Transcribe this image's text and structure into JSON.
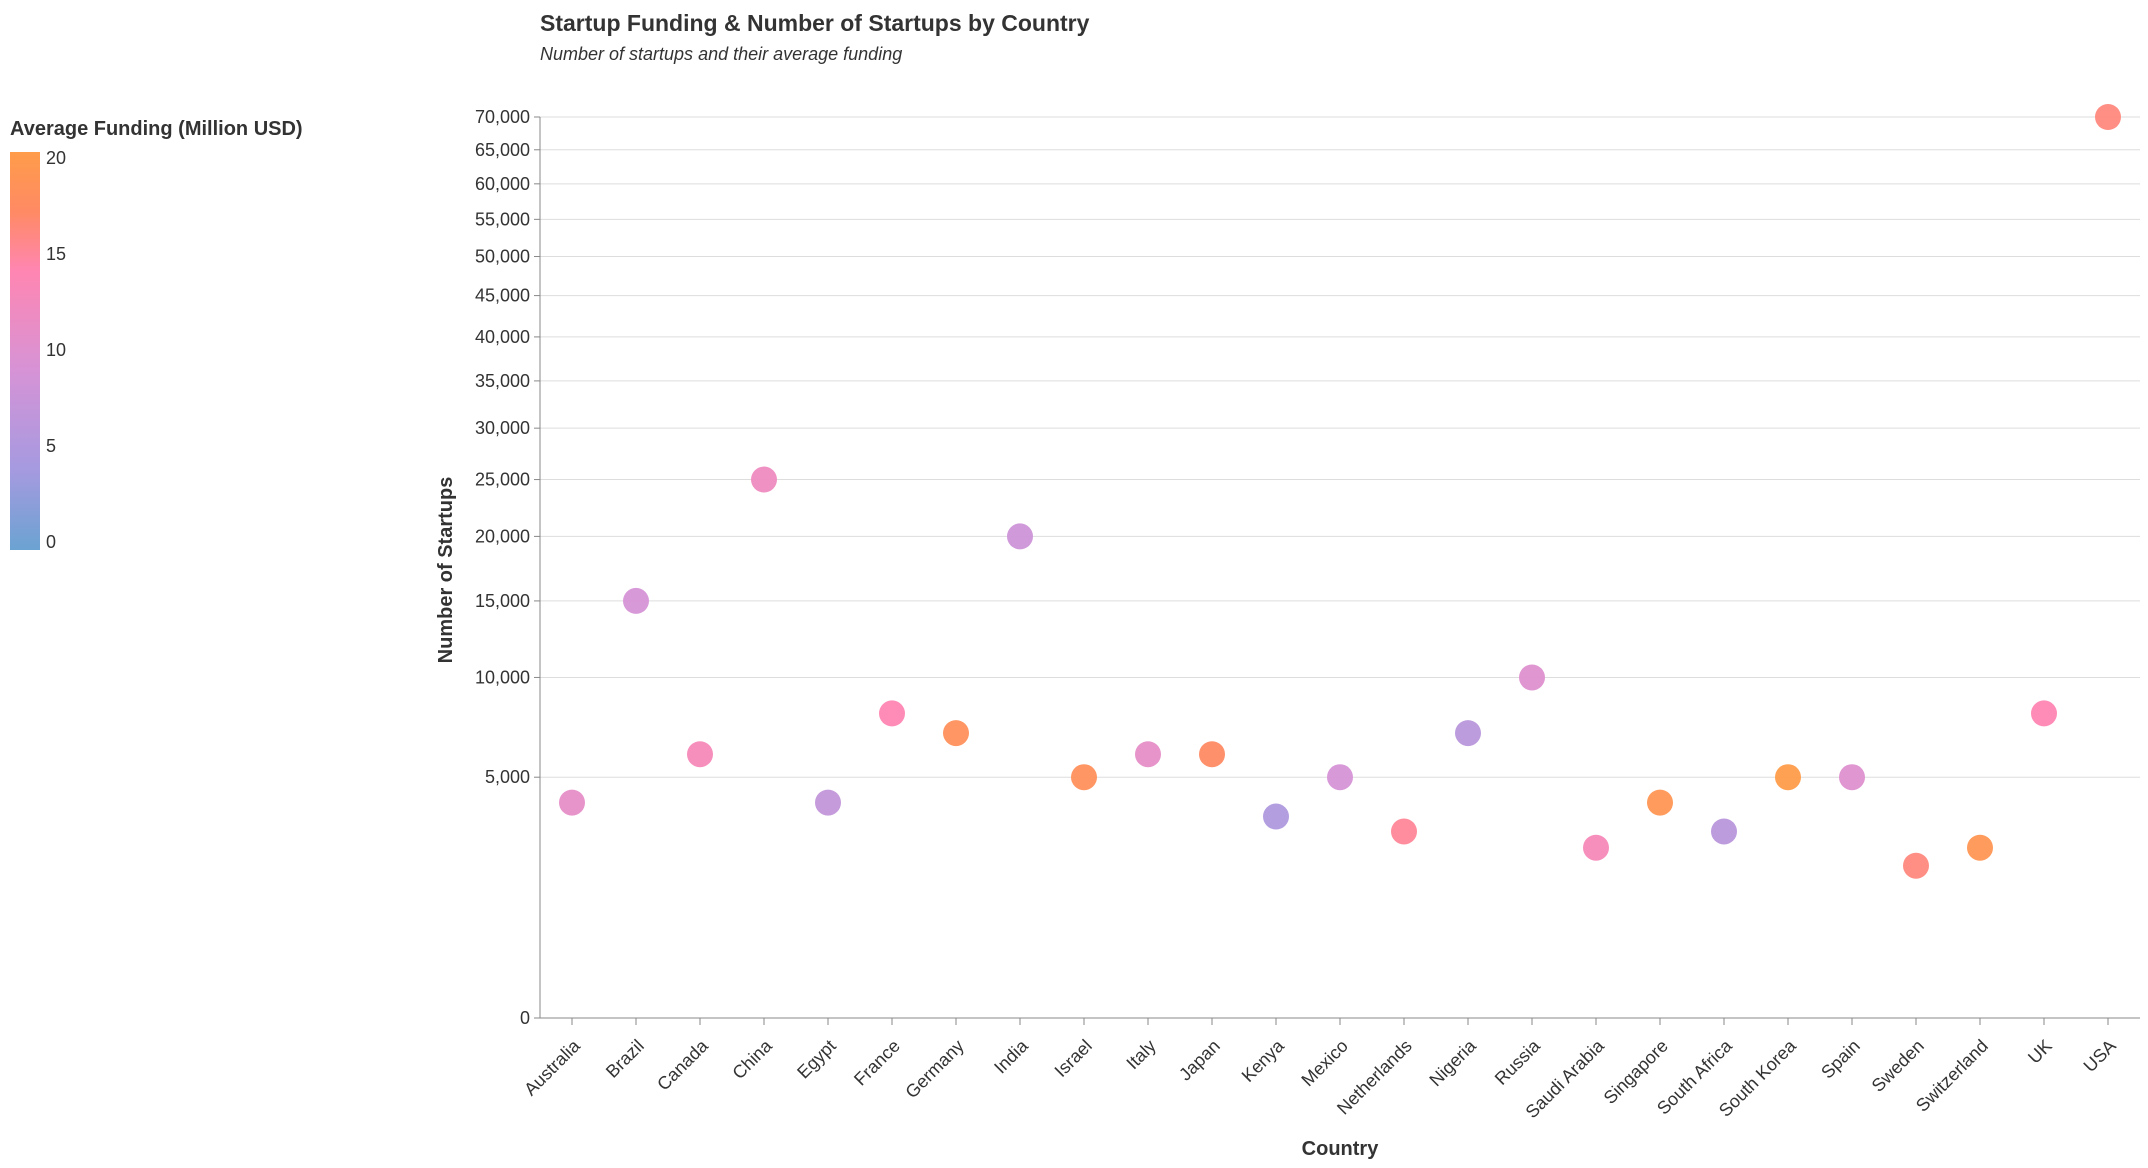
{
  "chart_data": {
    "type": "scatter",
    "title": "Startup Funding & Number of Startups by Country",
    "subtitle": "Number of startups and their average funding",
    "xlabel": "Country",
    "ylabel": "Number of Startups",
    "y_scale": "sqrt",
    "ylim": [
      0,
      70000
    ],
    "y_ticks": [
      0,
      5000,
      10000,
      15000,
      20000,
      25000,
      30000,
      35000,
      40000,
      45000,
      50000,
      55000,
      60000,
      65000,
      70000
    ],
    "y_tick_labels": [
      "0",
      "5,000",
      "10,000",
      "15,000",
      "20,000",
      "25,000",
      "30,000",
      "35,000",
      "40,000",
      "45,000",
      "50,000",
      "55,000",
      "60,000",
      "65,000",
      "70,000"
    ],
    "grid": true,
    "categories": [
      "Australia",
      "Brazil",
      "Canada",
      "China",
      "Egypt",
      "France",
      "Germany",
      "India",
      "Israel",
      "Italy",
      "Japan",
      "Kenya",
      "Mexico",
      "Netherlands",
      "Nigeria",
      "Russia",
      "Saudi Arabia",
      "Singapore",
      "South Africa",
      "South Korea",
      "Spain",
      "Sweden",
      "Switzerland",
      "UK",
      "USA"
    ],
    "startups": [
      4000,
      15000,
      6000,
      25000,
      4000,
      8000,
      7000,
      20000,
      5000,
      6000,
      6000,
      3500,
      5000,
      3000,
      7000,
      10000,
      2500,
      4000,
      3000,
      5000,
      5000,
      2000,
      2500,
      8000,
      70000
    ],
    "avg_funding_musd": [
      11,
      9,
      13,
      12,
      7,
      14,
      18,
      8,
      18,
      11,
      17,
      5,
      9,
      15,
      6,
      10,
      13,
      19,
      6,
      20,
      10,
      16,
      19,
      14,
      16
    ],
    "legend": {
      "title": "Average Funding (Million USD)",
      "placement": "left",
      "domain": [
        0,
        20
      ],
      "ticks": [
        "0",
        "5",
        "10",
        "15",
        "20"
      ],
      "colors": [
        "#6ba3d2",
        "#a59ae0",
        "#d693d6",
        "#ff86b2",
        "#ff8a64",
        "#ff9c4a"
      ]
    }
  }
}
